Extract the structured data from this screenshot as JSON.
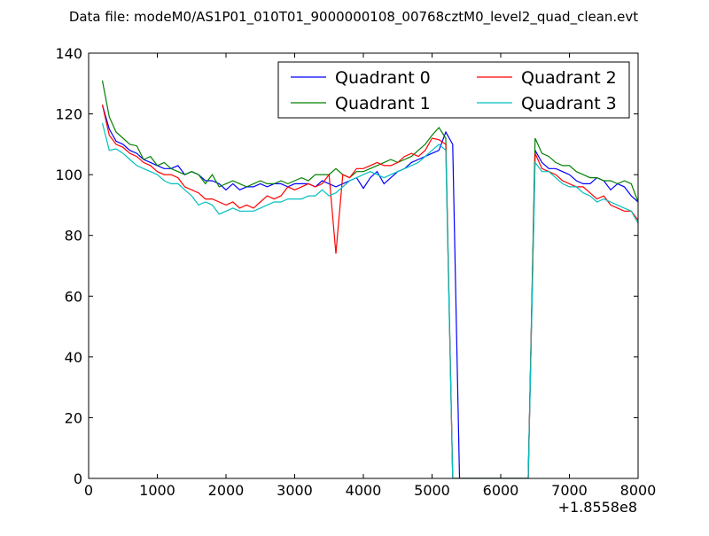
{
  "chart_data": {
    "type": "line",
    "title": "Data file: modeM0/AS1P01_010T01_9000000108_00768cztM0_level2_quad_clean.evt",
    "xlabel": "",
    "ylabel": "",
    "x_offset_label": "+1.8558e8",
    "xlim": [
      0,
      8000
    ],
    "ylim": [
      0,
      140
    ],
    "xticks": [
      0,
      1000,
      2000,
      3000,
      4000,
      5000,
      6000,
      7000,
      8000
    ],
    "yticks": [
      0,
      20,
      40,
      60,
      80,
      100,
      120,
      140
    ],
    "grid": false,
    "legend_location": "upper right",
    "legend_columns": 2,
    "series": [
      {
        "name": "Quadrant 0",
        "color": "#0000ff",
        "x": [
          200,
          300,
          400,
          500,
          600,
          700,
          800,
          900,
          1000,
          1100,
          1200,
          1300,
          1400,
          1500,
          1600,
          1700,
          1800,
          1900,
          2000,
          2100,
          2200,
          2300,
          2400,
          2500,
          2600,
          2700,
          2800,
          2900,
          3000,
          3100,
          3200,
          3300,
          3400,
          3500,
          3600,
          3700,
          3800,
          3900,
          4000,
          4100,
          4200,
          4300,
          4400,
          4500,
          4600,
          4700,
          4800,
          4900,
          5000,
          5100,
          5200,
          5300,
          5400,
          5500,
          5600,
          5700,
          5800,
          5900,
          6000,
          6100,
          6200,
          6300,
          6400,
          6500,
          6600,
          6700,
          6800,
          6900,
          7000,
          7100,
          7200,
          7300,
          7400,
          7500,
          7600,
          7700,
          7800,
          7900,
          8000
        ],
        "y": [
          123,
          115,
          111,
          110,
          108,
          107,
          105,
          104,
          103,
          102,
          102,
          103,
          100,
          101,
          100,
          98,
          98,
          97,
          95,
          97,
          95,
          96,
          96,
          97,
          96,
          97,
          97,
          96,
          97,
          97,
          97,
          96,
          98,
          97,
          96,
          97,
          98,
          99,
          95.5,
          99,
          101,
          97,
          99,
          101,
          102,
          104,
          105,
          106,
          107,
          108,
          114,
          110,
          0,
          0,
          0,
          0,
          0,
          0,
          0,
          0,
          0,
          0,
          0,
          108,
          104,
          102,
          102,
          101,
          100,
          98,
          97,
          97,
          99,
          98,
          95,
          97,
          96,
          93,
          91
        ]
      },
      {
        "name": "Quadrant 1",
        "color": "#008000",
        "x": [
          200,
          300,
          400,
          500,
          600,
          700,
          800,
          900,
          1000,
          1100,
          1200,
          1300,
          1400,
          1500,
          1600,
          1700,
          1800,
          1900,
          2000,
          2100,
          2200,
          2300,
          2400,
          2500,
          2600,
          2700,
          2800,
          2900,
          3000,
          3100,
          3200,
          3300,
          3400,
          3500,
          3600,
          3700,
          3800,
          3900,
          4000,
          4100,
          4200,
          4300,
          4400,
          4500,
          4600,
          4700,
          4800,
          4900,
          5000,
          5100,
          5200,
          5300,
          5400,
          5500,
          5600,
          5700,
          5800,
          5900,
          6000,
          6100,
          6200,
          6300,
          6400,
          6500,
          6600,
          6700,
          6800,
          6900,
          7000,
          7100,
          7200,
          7300,
          7400,
          7500,
          7600,
          7700,
          7800,
          7900,
          8000
        ],
        "y": [
          131,
          119,
          114,
          112,
          110,
          109.5,
          105,
          106,
          103,
          104,
          102,
          101,
          100,
          101,
          100,
          97,
          100,
          96,
          97,
          98,
          97,
          96,
          97,
          98,
          97,
          97,
          98,
          97,
          98,
          99,
          98,
          100,
          100,
          100,
          102,
          100,
          99,
          101,
          101,
          102,
          103,
          104,
          105,
          104,
          105,
          106,
          108,
          110,
          113,
          115.5,
          112,
          0,
          0,
          0,
          0,
          0,
          0,
          0,
          0,
          0,
          0,
          0,
          0,
          112,
          107,
          106,
          104,
          103,
          103,
          101,
          100,
          99,
          99,
          98,
          98,
          97,
          98,
          97,
          91
        ]
      },
      {
        "name": "Quadrant 2",
        "color": "#ff0000",
        "x": [
          200,
          300,
          400,
          500,
          600,
          700,
          800,
          900,
          1000,
          1100,
          1200,
          1300,
          1400,
          1500,
          1600,
          1700,
          1800,
          1900,
          2000,
          2100,
          2200,
          2300,
          2400,
          2500,
          2600,
          2700,
          2800,
          2900,
          3000,
          3100,
          3200,
          3300,
          3400,
          3500,
          3600,
          3700,
          3800,
          3900,
          4000,
          4100,
          4200,
          4300,
          4400,
          4500,
          4600,
          4700,
          4800,
          4900,
          5000,
          5100,
          5200,
          5300,
          5400,
          5500,
          5600,
          5700,
          5800,
          5900,
          6000,
          6100,
          6200,
          6300,
          6400,
          6500,
          6600,
          6700,
          6800,
          6900,
          7000,
          7100,
          7200,
          7300,
          7400,
          7500,
          7600,
          7700,
          7800,
          7900,
          8000
        ],
        "y": [
          123,
          113,
          110,
          109,
          107,
          106,
          104,
          103,
          101,
          100,
          100,
          99,
          96,
          95,
          94,
          92,
          92,
          91,
          90,
          91,
          89,
          90,
          89,
          91,
          93,
          92,
          93,
          96,
          95,
          96,
          97,
          96,
          97,
          100,
          74,
          100,
          99,
          102,
          102,
          103,
          104,
          103,
          103,
          104,
          106,
          107,
          106,
          108,
          112,
          111.5,
          110,
          0,
          0,
          0,
          0,
          0,
          0,
          0,
          0,
          0,
          0,
          0,
          0,
          107,
          102,
          101,
          100,
          98,
          97,
          96,
          96,
          94,
          92,
          93,
          90,
          89,
          88,
          88,
          85
        ]
      },
      {
        "name": "Quadrant 3",
        "color": "#00bfbf",
        "x": [
          200,
          300,
          400,
          500,
          600,
          700,
          800,
          900,
          1000,
          1100,
          1200,
          1300,
          1400,
          1500,
          1600,
          1700,
          1800,
          1900,
          2000,
          2100,
          2200,
          2300,
          2400,
          2500,
          2600,
          2700,
          2800,
          2900,
          3000,
          3100,
          3200,
          3300,
          3400,
          3500,
          3600,
          3700,
          3800,
          3900,
          4000,
          4100,
          4200,
          4300,
          4400,
          4500,
          4600,
          4700,
          4800,
          4900,
          5000,
          5100,
          5200,
          5300,
          5400,
          5500,
          5600,
          5700,
          5800,
          5900,
          6000,
          6100,
          6200,
          6300,
          6400,
          6500,
          6600,
          6700,
          6800,
          6900,
          7000,
          7100,
          7200,
          7300,
          7400,
          7500,
          7600,
          7700,
          7800,
          7900,
          8000
        ],
        "y": [
          117,
          108,
          108.5,
          107,
          105,
          103,
          102,
          101,
          100,
          98,
          97,
          97,
          95,
          93,
          90,
          91,
          90,
          87,
          88,
          89,
          88,
          88,
          88,
          89,
          90,
          91,
          91,
          92,
          92,
          92,
          93,
          93,
          95,
          93,
          94,
          96,
          98,
          99,
          100,
          101,
          100,
          99,
          100,
          101,
          102,
          103,
          104,
          106,
          108,
          110,
          108,
          0,
          0,
          0,
          0,
          0,
          0,
          0,
          0,
          0,
          0,
          0,
          0,
          104,
          101,
          101,
          99,
          97,
          96,
          96,
          94,
          93,
          91,
          92,
          91,
          90,
          89,
          88,
          84
        ]
      }
    ]
  }
}
